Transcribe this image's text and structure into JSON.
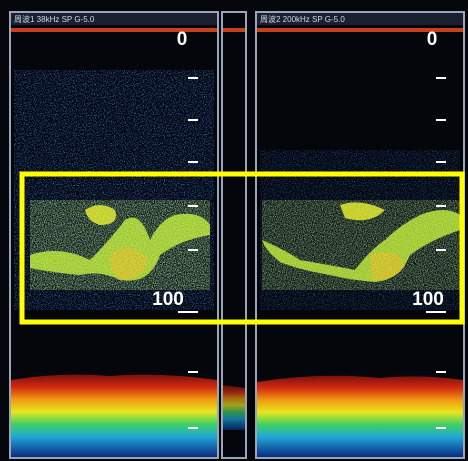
{
  "panels": [
    {
      "header": "周波1 38kHz SP G-5.0",
      "depth_top": "0",
      "depth_bottom": "100"
    },
    {
      "header": "周波2 200kHz SP G-5.0",
      "depth_top": "0",
      "depth_bottom": "100"
    }
  ]
}
